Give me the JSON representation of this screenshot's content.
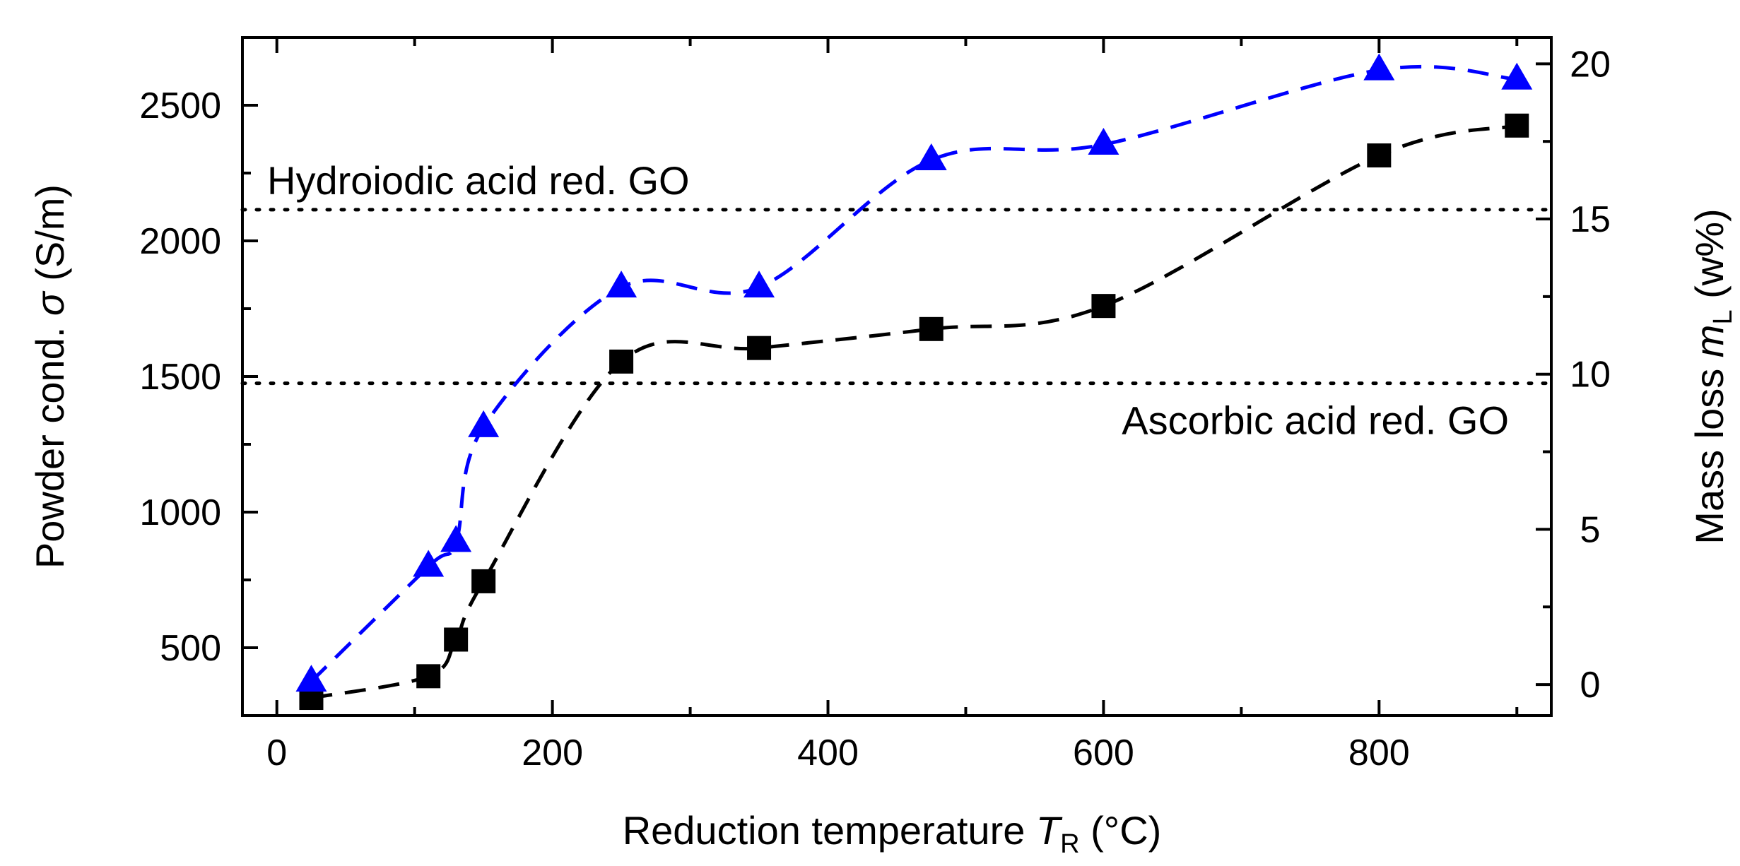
{
  "chart_data": {
    "type": "scatter",
    "xlabel_main": "Reduction temperature ",
    "xlabel_italic": "T",
    "xlabel_sub": "R",
    "xlabel_unit": " (°C)",
    "ylabel_main": "Powder cond. ",
    "ylabel_italic": "σ",
    "ylabel_unit": " (S/m)",
    "y2label_main": "Mass loss ",
    "y2label_italic": "m",
    "y2label_sub": "L",
    "y2label_unit": " (w%)",
    "xlim": [
      -25,
      925
    ],
    "ylim": [
      250,
      2750
    ],
    "y2lim": [
      -1.0,
      20.85
    ],
    "x_ticks": [
      0,
      200,
      400,
      600,
      800
    ],
    "y_ticks": [
      500,
      1000,
      1500,
      2000,
      2500
    ],
    "y2_ticks": [
      0,
      5,
      10,
      15,
      20
    ],
    "series": [
      {
        "axis": "left",
        "marker": "square",
        "color": "#000000",
        "x": [
          25,
          110,
          130,
          150,
          250,
          350,
          475,
          600,
          800,
          900
        ],
        "values": [
          315,
          395,
          530,
          745,
          1555,
          1605,
          1675,
          1760,
          2315,
          2425
        ]
      },
      {
        "axis": "right",
        "marker": "triangle",
        "color": "#0000ff",
        "x": [
          25,
          110,
          130,
          150,
          250,
          350,
          475,
          600,
          800,
          900
        ],
        "values": [
          0.1,
          3.8,
          4.6,
          8.3,
          12.8,
          12.8,
          16.9,
          17.4,
          19.8,
          19.5
        ]
      }
    ],
    "reference_lines": [
      {
        "label": "Hydroiodic acid red. GO",
        "y": 2115,
        "label_position": "above-left"
      },
      {
        "label": "Ascorbic acid red. GO",
        "y": 1475,
        "label_position": "below-right"
      }
    ]
  }
}
